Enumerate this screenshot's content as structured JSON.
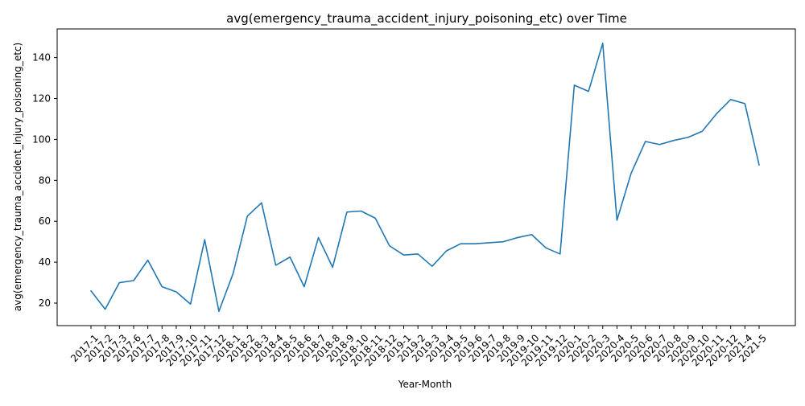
{
  "chart_data": {
    "type": "line",
    "title": "avg(emergency_trauma_accident_injury_poisoning_etc) over Time",
    "xlabel": "Year-Month",
    "ylabel": "avg(emergency_trauma_accident_injury_poisoning_etc)",
    "ylim": [
      9,
      154
    ],
    "yticks": [
      20,
      40,
      60,
      80,
      100,
      120,
      140
    ],
    "grid": false,
    "legend": "none",
    "colors": {
      "line": "#1f77b4"
    },
    "categories": [
      "2017-1",
      "2017-2",
      "2017-3",
      "2017-6",
      "2017-7",
      "2017-8",
      "2017-9",
      "2017-10",
      "2017-11",
      "2017-12",
      "2018-1",
      "2018-2",
      "2018-3",
      "2018-4",
      "2018-5",
      "2018-6",
      "2018-7",
      "2018-8",
      "2018-9",
      "2018-10",
      "2018-11",
      "2018-12",
      "2019-1",
      "2019-2",
      "2019-3",
      "2019-4",
      "2019-5",
      "2019-6",
      "2019-7",
      "2019-8",
      "2019-9",
      "2019-10",
      "2019-11",
      "2019-12",
      "2020-1",
      "2020-2",
      "2020-3",
      "2020-4",
      "2020-5",
      "2020-6",
      "2020-7",
      "2020-8",
      "2020-9",
      "2020-10",
      "2020-11",
      "2020-12",
      "2021-4",
      "2021-5"
    ],
    "series": [
      {
        "values": [
          26,
          17,
          30,
          31,
          41,
          28,
          25.5,
          19.5,
          51,
          16,
          34.5,
          62.5,
          69,
          38.5,
          42.5,
          28,
          52,
          37.5,
          64.5,
          65,
          61.5,
          48,
          43.5,
          44,
          38,
          45.5,
          49,
          49,
          49.5,
          50,
          52,
          53.5,
          47,
          44,
          126.5,
          123.5,
          147,
          60.5,
          83.5,
          99,
          97.5,
          99.5,
          101,
          104,
          112.5,
          119.5,
          117.5,
          87.5
        ]
      }
    ]
  }
}
